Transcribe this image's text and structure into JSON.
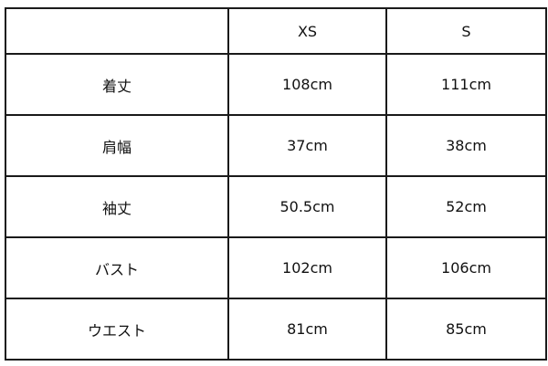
{
  "header": {
    "corner": "",
    "sizes": [
      "XS",
      "S"
    ]
  },
  "rows": [
    {
      "label": "着丈",
      "values": [
        "108cm",
        "111cm"
      ]
    },
    {
      "label": "肩幅",
      "values": [
        "37cm",
        "38cm"
      ]
    },
    {
      "label": "袖丈",
      "values": [
        "50.5cm",
        "52cm"
      ]
    },
    {
      "label": "バスト",
      "values": [
        "102cm",
        "106cm"
      ]
    },
    {
      "label": "ウエスト",
      "values": [
        "81cm",
        "85cm"
      ]
    }
  ]
}
